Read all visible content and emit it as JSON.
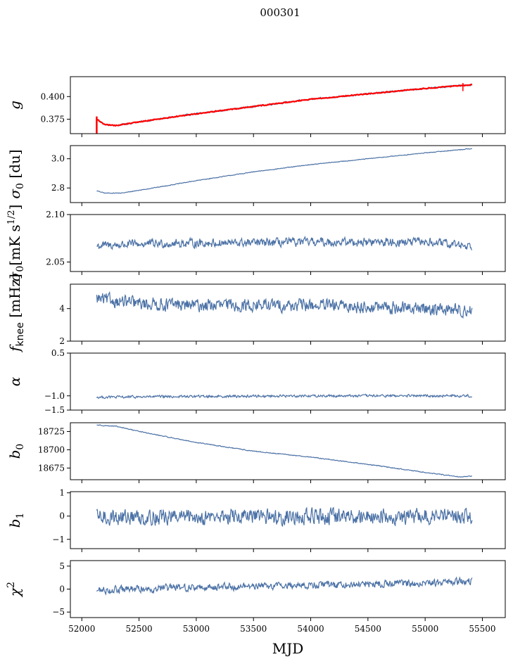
{
  "figure": {
    "title": "000301"
  },
  "colors": {
    "series": "#4c72a6",
    "fit": "#ff0000",
    "axes": "#000000"
  },
  "chart_data": [
    {
      "type": "line",
      "ylabel": "g",
      "x_range": [
        52130,
        55410
      ],
      "ylim": [
        0.359,
        0.422
      ],
      "yticks": [
        0.375,
        0.4
      ],
      "ytick_labels": [
        "0.375",
        "0.400"
      ],
      "trend": [
        [
          52130,
          0.375
        ],
        [
          52200,
          0.369
        ],
        [
          52300,
          0.368
        ],
        [
          52500,
          0.372
        ],
        [
          53000,
          0.381
        ],
        [
          53500,
          0.389
        ],
        [
          54000,
          0.397
        ],
        [
          54500,
          0.403
        ],
        [
          55000,
          0.409
        ],
        [
          55300,
          0.412
        ],
        [
          55410,
          0.413
        ]
      ],
      "noise": 0.0008,
      "overlay": {
        "name": "",
        "color": "#ff0000"
      }
    },
    {
      "type": "line",
      "ylabel": "σ0 [du]",
      "x_range": [
        52130,
        55410
      ],
      "ylim": [
        2.7,
        3.09
      ],
      "yticks": [
        2.8,
        3.0
      ],
      "ytick_labels": [
        "2.8",
        "3.0"
      ],
      "trend": [
        [
          52130,
          2.78
        ],
        [
          52200,
          2.765
        ],
        [
          52350,
          2.765
        ],
        [
          52700,
          2.81
        ],
        [
          53000,
          2.85
        ],
        [
          53500,
          2.91
        ],
        [
          54000,
          2.96
        ],
        [
          54500,
          3.0
        ],
        [
          55000,
          3.04
        ],
        [
          55410,
          3.07
        ]
      ],
      "noise": 0.002
    },
    {
      "type": "line",
      "ylabel": "σ0[mK s^1/2]",
      "x_range": [
        52130,
        55410
      ],
      "ylim": [
        2.04,
        2.1
      ],
      "yticks": [
        2.05,
        2.1
      ],
      "ytick_labels": [
        "2.05",
        "2.10"
      ],
      "trend": [
        [
          52130,
          2.067
        ],
        [
          52500,
          2.069
        ],
        [
          53000,
          2.07
        ],
        [
          53500,
          2.07
        ],
        [
          54000,
          2.071
        ],
        [
          54500,
          2.071
        ],
        [
          55000,
          2.071
        ],
        [
          55410,
          2.067
        ]
      ],
      "noise": 0.004
    },
    {
      "type": "line",
      "ylabel": "f_knee [mHz]",
      "x_range": [
        52130,
        55410
      ],
      "ylim": [
        2,
        5.5
      ],
      "yticks": [
        2,
        4
      ],
      "ytick_labels": [
        "2",
        "4"
      ],
      "trend": [
        [
          52130,
          4.6
        ],
        [
          52500,
          4.3
        ],
        [
          53000,
          4.2
        ],
        [
          54000,
          4.2
        ],
        [
          55000,
          4.0
        ],
        [
          55410,
          3.9
        ]
      ],
      "noise": 0.35
    },
    {
      "type": "line",
      "ylabel": "α",
      "x_range": [
        52130,
        55410
      ],
      "ylim": [
        -1.5,
        0.5
      ],
      "yticks": [
        -1.5,
        -1.0,
        0.5
      ],
      "ytick_labels": [
        "−1.5",
        "−1.0",
        "0.5"
      ],
      "trend": [
        [
          52130,
          -1.05
        ],
        [
          53000,
          -1.02
        ],
        [
          54000,
          -1.0
        ],
        [
          55410,
          -1.0
        ]
      ],
      "noise": 0.04
    },
    {
      "type": "line",
      "ylabel": "b0",
      "x_range": [
        52130,
        55410
      ],
      "ylim": [
        18659,
        18737
      ],
      "yticks": [
        18675,
        18700,
        18725
      ],
      "ytick_labels": [
        "18675",
        "18700",
        "18725"
      ],
      "trend": [
        [
          52130,
          18734
        ],
        [
          52300,
          18732
        ],
        [
          52600,
          18722
        ],
        [
          53000,
          18710
        ],
        [
          53500,
          18698
        ],
        [
          54000,
          18690
        ],
        [
          54500,
          18680
        ],
        [
          55000,
          18669
        ],
        [
          55300,
          18663
        ],
        [
          55410,
          18664
        ]
      ],
      "noise": 0.5
    },
    {
      "type": "line",
      "ylabel": "b1",
      "x_range": [
        52130,
        55410
      ],
      "ylim": [
        -1.4,
        1.05
      ],
      "yticks": [
        -1,
        0,
        1
      ],
      "ytick_labels": [
        "−1",
        "0",
        "1"
      ],
      "trend": [
        [
          52130,
          -0.05
        ],
        [
          55410,
          0.0
        ]
      ],
      "noise": 0.3
    },
    {
      "type": "line",
      "ylabel": "χ²",
      "x_range": [
        52130,
        55410
      ],
      "ylim": [
        -6.2,
        6.2
      ],
      "yticks": [
        -5,
        0,
        5
      ],
      "ytick_labels": [
        "−5",
        "0",
        "5"
      ],
      "trend": [
        [
          52130,
          -0.3
        ],
        [
          52500,
          0.0
        ],
        [
          53000,
          0.4
        ],
        [
          54000,
          0.9
        ],
        [
          55000,
          1.3
        ],
        [
          55410,
          1.7
        ]
      ],
      "noise": 0.7
    }
  ],
  "xaxis": {
    "label": "MJD",
    "xlim": [
      51900,
      55700
    ],
    "ticks": [
      52000,
      52500,
      53000,
      53500,
      54000,
      54500,
      55000,
      55500
    ],
    "tick_labels": [
      "52000",
      "52500",
      "53000",
      "53500",
      "54000",
      "54500",
      "55000",
      "55500"
    ]
  }
}
